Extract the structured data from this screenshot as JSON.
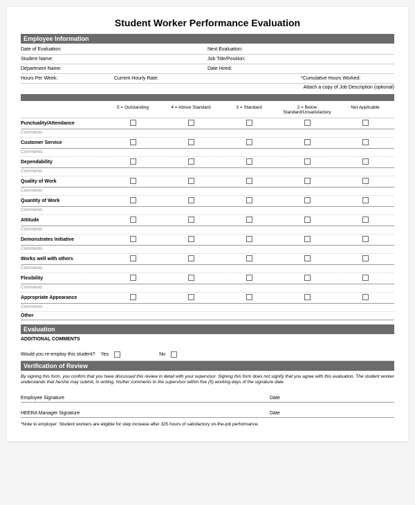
{
  "title": "Student Worker Performance Evaluation",
  "sections": {
    "employee_info": "Employee Information",
    "evaluation": "Evaluation",
    "verification": "Verification of Review"
  },
  "info_fields": {
    "date_eval": "Date of Evaluation:",
    "next_eval": "Next Evaluation:",
    "student_name": "Student Name:",
    "job_title": "Job Title/Position:",
    "dept_name": "Department Name:",
    "date_hired": "Date Hired:",
    "hours_week": "Hours Per Week:",
    "hourly_rate": "Current Hourly Rate:",
    "cum_hours": "*Cumulative Hours Worked:"
  },
  "attach_note": "Attach a copy of Job Description (optional)",
  "rating_scale": [
    "5 = Outstanding",
    "4 = Above Standard",
    "3 = Standard",
    "2 = Below Standard/Unsatisfactory",
    "Not Applicable"
  ],
  "criteria": [
    "Punctuality/Attendance",
    "Customer Service",
    "Dependability",
    "Quality of Work",
    "Quantity of Work",
    "Attitude",
    "Demonstrates Initiative",
    "Works well with others",
    "Flexibility",
    "Appropriate Appearance"
  ],
  "comments_label": "Comments",
  "other_label": "Other",
  "additional_comments": "ADDITIONAL COMMENTS",
  "reemploy": {
    "question": "Would you re-employ this student?",
    "yes": "Yes",
    "no": "No"
  },
  "verify_text": "By signing this form, you confirm that you have discussed this review in detail with your supervisor. Signing this form does not signify that you agree with this evaluation. The student worker understands that he/she may submit, in writing, his/her comments to the supervisor within five (5) working days of the signature date.",
  "signatures": {
    "employee": "Employee Signature",
    "manager": "HEERA Manager Signature",
    "date": "Date"
  },
  "footnote": "*Note to employer: Student workers are eligible for step increase after 325 hours of satisfactory on-the-job performance."
}
